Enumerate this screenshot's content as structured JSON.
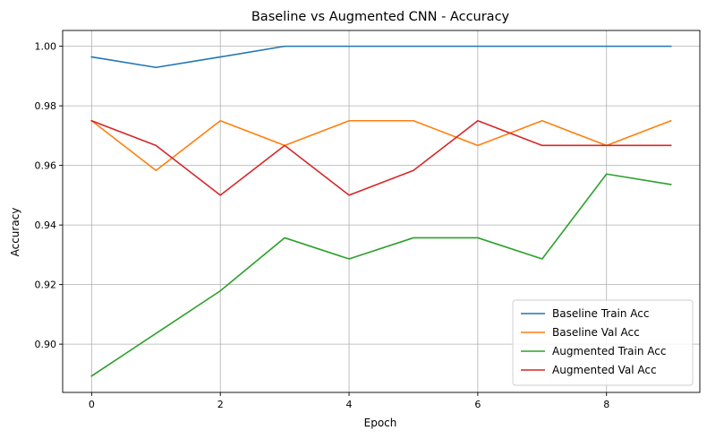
{
  "chart_data": {
    "type": "line",
    "title": "Baseline vs Augmented CNN - Accuracy",
    "xlabel": "Epoch",
    "ylabel": "Accuracy",
    "x": [
      0,
      1,
      2,
      3,
      4,
      5,
      6,
      7,
      8,
      9
    ],
    "xlim": [
      -0.45,
      9.45
    ],
    "ylim": [
      0.8838,
      1.0053
    ],
    "xticks": [
      0,
      2,
      4,
      6,
      8
    ],
    "xtick_labels": [
      "0",
      "2",
      "4",
      "6",
      "8"
    ],
    "yticks": [
      0.9,
      0.92,
      0.94,
      0.96,
      0.98,
      1.0
    ],
    "ytick_labels": [
      "0.90",
      "0.92",
      "0.94",
      "0.96",
      "0.98",
      "1.00"
    ],
    "grid": true,
    "legend_position": "lower-right",
    "series": [
      {
        "name": "Baseline Train Acc",
        "color": "#1f77b4",
        "values": [
          0.9964,
          0.9929,
          0.9964,
          1.0,
          1.0,
          1.0,
          1.0,
          1.0,
          1.0,
          1.0
        ]
      },
      {
        "name": "Baseline Val Acc",
        "color": "#ff7f0e",
        "values": [
          0.975,
          0.9583,
          0.975,
          0.9667,
          0.975,
          0.975,
          0.9667,
          0.975,
          0.9667,
          0.975
        ]
      },
      {
        "name": "Augmented Train Acc",
        "color": "#2ca02c",
        "values": [
          0.8893,
          0.9036,
          0.9179,
          0.9357,
          0.9286,
          0.9357,
          0.9357,
          0.9286,
          0.9571,
          0.9536
        ]
      },
      {
        "name": "Augmented Val Acc",
        "color": "#d62728",
        "values": [
          0.975,
          0.9667,
          0.95,
          0.9667,
          0.95,
          0.9583,
          0.975,
          0.9667,
          0.9667,
          0.9667
        ]
      }
    ]
  }
}
